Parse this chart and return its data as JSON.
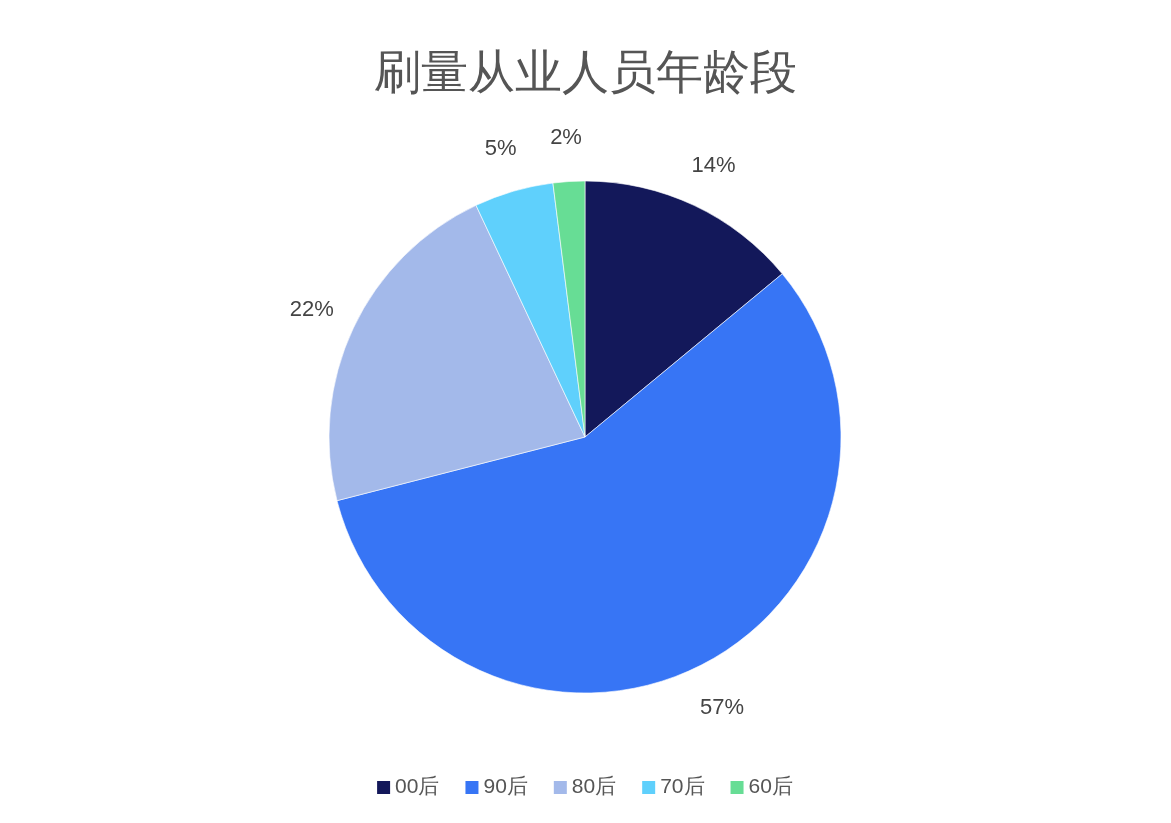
{
  "chart_data": {
    "type": "pie",
    "title": "刷量从业人员年龄段",
    "categories": [
      "00后",
      "90后",
      "80后",
      "70后",
      "60后"
    ],
    "values": [
      14,
      57,
      22,
      5,
      2
    ],
    "colors": [
      "#13185a",
      "#3775f5",
      "#a3b9ea",
      "#5fd0fc",
      "#67dd95"
    ],
    "value_labels": [
      "14%",
      "57%",
      "22%",
      "5%",
      "2%"
    ],
    "legend": "bottom"
  }
}
